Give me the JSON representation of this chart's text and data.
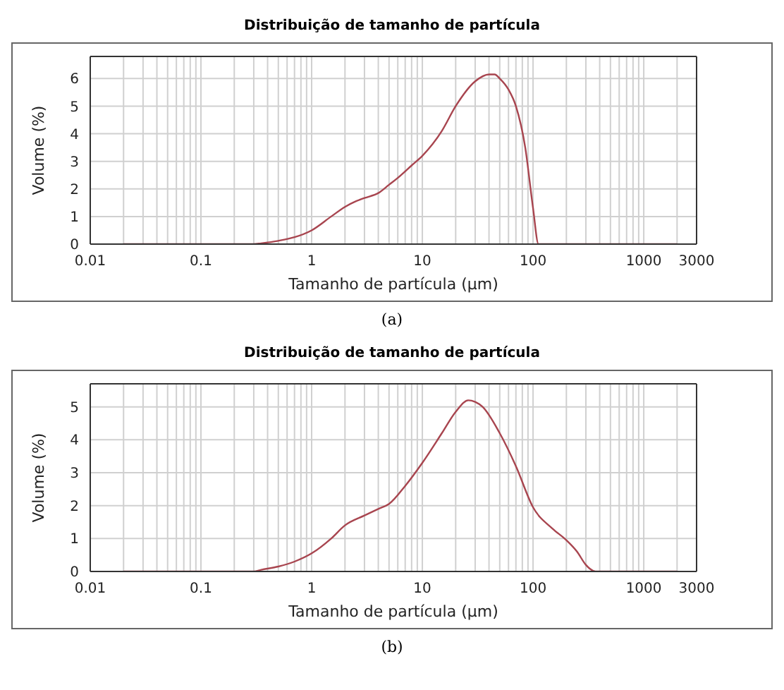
{
  "chart_data": [
    {
      "type": "line",
      "title": "Distribuição de tamanho de partícula",
      "xlabel": "Tamanho de partícula (μm)",
      "ylabel": "Volume (%)",
      "annotations": [
        "(a)"
      ],
      "log": "x",
      "grid": true,
      "marker": "none",
      "line_style": "solid",
      "xlim": [
        0.01,
        3000
      ],
      "ylim": [
        0,
        6.8
      ],
      "yticks": [
        0,
        1,
        2,
        3,
        4,
        5,
        6
      ],
      "xticks": [
        0.01,
        {
          "value": 0.02,
          "label": null
        },
        {
          "value": 0.03,
          "label": null
        },
        {
          "value": 0.04,
          "label": null
        },
        {
          "value": 0.05,
          "label": null
        },
        {
          "value": 0.06,
          "label": null
        },
        {
          "value": 0.07,
          "label": null
        },
        {
          "value": 0.08,
          "label": null
        },
        {
          "value": 0.09,
          "label": null
        },
        0.1,
        {
          "value": 0.2,
          "label": null
        },
        {
          "value": 0.3,
          "label": null
        },
        {
          "value": 0.4,
          "label": null
        },
        {
          "value": 0.5,
          "label": null
        },
        {
          "value": 0.6,
          "label": null
        },
        {
          "value": 0.7,
          "label": null
        },
        {
          "value": 0.8,
          "label": null
        },
        {
          "value": 0.9,
          "label": null
        },
        1,
        {
          "value": 2,
          "label": null
        },
        {
          "value": 3,
          "label": null
        },
        {
          "value": 4,
          "label": null
        },
        {
          "value": 5,
          "label": null
        },
        {
          "value": 6,
          "label": null
        },
        {
          "value": 7,
          "label": null
        },
        {
          "value": 8,
          "label": null
        },
        {
          "value": 9,
          "label": null
        },
        10,
        {
          "value": 20,
          "label": null
        },
        {
          "value": 30,
          "label": null
        },
        {
          "value": 40,
          "label": null
        },
        {
          "value": 50,
          "label": null
        },
        {
          "value": 60,
          "label": null
        },
        {
          "value": 70,
          "label": null
        },
        {
          "value": 80,
          "label": null
        },
        {
          "value": 90,
          "label": null
        },
        100,
        {
          "value": 200,
          "label": null
        },
        {
          "value": 300,
          "label": null
        },
        {
          "value": 400,
          "label": null
        },
        {
          "value": 500,
          "label": null
        },
        {
          "value": 600,
          "label": null
        },
        {
          "value": 700,
          "label": null
        },
        {
          "value": 800,
          "label": null
        },
        {
          "value": 900,
          "label": null
        },
        1000,
        {
          "value": 2000,
          "label": null
        },
        3000
      ],
      "series": [
        {
          "color": "#a8454f",
          "x": [
            0.02,
            0.3,
            0.35,
            0.5,
            0.7,
            1,
            1.5,
            2,
            2.5,
            3,
            4,
            5,
            6,
            8,
            10,
            15,
            20,
            30,
            40,
            45,
            50,
            60,
            70,
            85,
            100,
            112,
            2000
          ],
          "values": [
            0,
            0,
            0.03,
            0.12,
            0.25,
            0.5,
            1.0,
            1.35,
            1.55,
            1.67,
            1.85,
            2.15,
            2.4,
            2.85,
            3.2,
            4.1,
            5.0,
            5.9,
            6.15,
            6.15,
            6.0,
            5.6,
            5.0,
            3.5,
            1.3,
            0,
            0
          ]
        }
      ]
    },
    {
      "type": "line",
      "title": "Distribuição de tamanho de partícula",
      "xlabel": "Tamanho de partícula (μm)",
      "ylabel": "Volume (%)",
      "annotations": [
        "(b)"
      ],
      "log": "x",
      "grid": true,
      "marker": "none",
      "line_style": "solid",
      "xlim": [
        0.01,
        3000
      ],
      "ylim": [
        0,
        5.7
      ],
      "yticks": [
        0,
        1,
        2,
        3,
        4,
        5
      ],
      "xticks": [
        0.01,
        {
          "value": 0.02,
          "label": null
        },
        {
          "value": 0.03,
          "label": null
        },
        {
          "value": 0.04,
          "label": null
        },
        {
          "value": 0.05,
          "label": null
        },
        {
          "value": 0.06,
          "label": null
        },
        {
          "value": 0.07,
          "label": null
        },
        {
          "value": 0.08,
          "label": null
        },
        {
          "value": 0.09,
          "label": null
        },
        0.1,
        {
          "value": 0.2,
          "label": null
        },
        {
          "value": 0.3,
          "label": null
        },
        {
          "value": 0.4,
          "label": null
        },
        {
          "value": 0.5,
          "label": null
        },
        {
          "value": 0.6,
          "label": null
        },
        {
          "value": 0.7,
          "label": null
        },
        {
          "value": 0.8,
          "label": null
        },
        {
          "value": 0.9,
          "label": null
        },
        1,
        {
          "value": 2,
          "label": null
        },
        {
          "value": 3,
          "label": null
        },
        {
          "value": 4,
          "label": null
        },
        {
          "value": 5,
          "label": null
        },
        {
          "value": 6,
          "label": null
        },
        {
          "value": 7,
          "label": null
        },
        {
          "value": 8,
          "label": null
        },
        {
          "value": 9,
          "label": null
        },
        10,
        {
          "value": 20,
          "label": null
        },
        {
          "value": 30,
          "label": null
        },
        {
          "value": 40,
          "label": null
        },
        {
          "value": 50,
          "label": null
        },
        {
          "value": 60,
          "label": null
        },
        {
          "value": 70,
          "label": null
        },
        {
          "value": 80,
          "label": null
        },
        {
          "value": 90,
          "label": null
        },
        100,
        {
          "value": 200,
          "label": null
        },
        {
          "value": 300,
          "label": null
        },
        {
          "value": 400,
          "label": null
        },
        {
          "value": 500,
          "label": null
        },
        {
          "value": 600,
          "label": null
        },
        {
          "value": 700,
          "label": null
        },
        {
          "value": 800,
          "label": null
        },
        {
          "value": 900,
          "label": null
        },
        1000,
        {
          "value": 2000,
          "label": null
        },
        3000
      ],
      "series": [
        {
          "color": "#a8454f",
          "x": [
            0.02,
            0.3,
            0.35,
            0.5,
            0.7,
            1,
            1.5,
            2,
            3,
            4,
            5,
            7,
            10,
            15,
            20,
            26,
            30,
            35,
            50,
            70,
            100,
            150,
            200,
            250,
            300,
            350,
            380,
            2000
          ],
          "values": [
            0,
            0,
            0.05,
            0.15,
            0.3,
            0.55,
            1.0,
            1.4,
            1.7,
            1.9,
            2.05,
            2.6,
            3.3,
            4.2,
            4.85,
            5.2,
            5.15,
            5.0,
            4.2,
            3.2,
            1.95,
            1.3,
            0.95,
            0.6,
            0.2,
            0.02,
            0,
            0
          ]
        }
      ]
    }
  ]
}
